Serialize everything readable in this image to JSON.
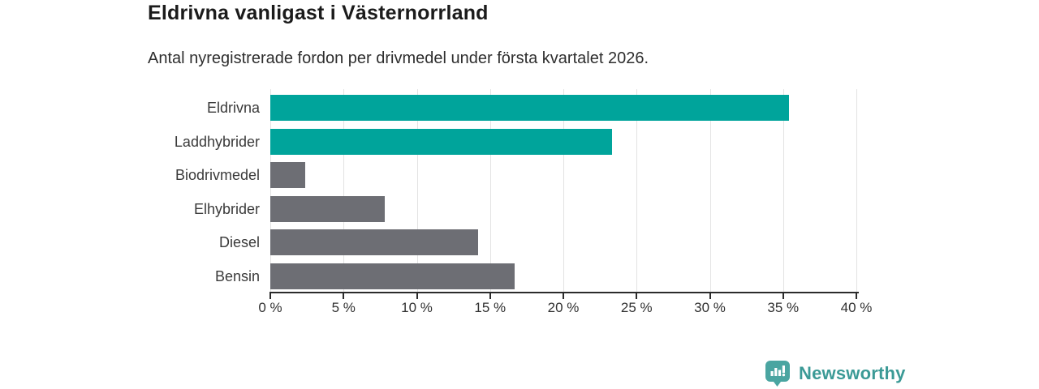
{
  "header": {
    "title": "Eldrivna vanligast i Västernorrland",
    "subtitle": "Antal nyregistrerade fordon per drivmedel under första kvartalet 2026."
  },
  "colors": {
    "teal": "#00a49b",
    "gray": "#6d6e74",
    "axis": "#2b2b2b",
    "grid": "#e3e3e3",
    "brand": "#3b9a96"
  },
  "chart_data": {
    "type": "bar",
    "orientation": "horizontal",
    "title": "Eldrivna vanligast i Västernorrland",
    "subtitle": "Antal nyregistrerade fordon per drivmedel under första kvartalet 2026.",
    "categories": [
      "Eldrivna",
      "Laddhybrider",
      "Biodrivmedel",
      "Elhybrider",
      "Diesel",
      "Bensin"
    ],
    "values": [
      35.4,
      23.3,
      2.4,
      7.8,
      14.2,
      16.7
    ],
    "unit": "%",
    "bar_colors": [
      "teal",
      "teal",
      "gray",
      "gray",
      "gray",
      "gray"
    ],
    "xlim": [
      0,
      40
    ],
    "x_ticks": [
      0,
      5,
      10,
      15,
      20,
      25,
      30,
      35,
      40
    ],
    "x_tick_labels": [
      "0 %",
      "5 %",
      "10 %",
      "15 %",
      "20 %",
      "25 %",
      "30 %",
      "35 %",
      "40 %"
    ],
    "grid": "vertical",
    "legend": "none",
    "data_labels": "none"
  },
  "footer": {
    "brand": "Newsworthy"
  }
}
